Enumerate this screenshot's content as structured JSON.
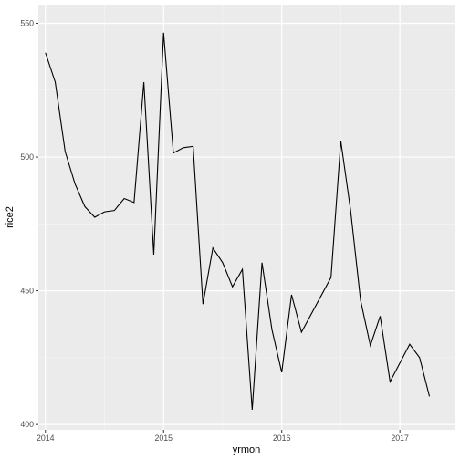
{
  "chart_data": {
    "type": "line",
    "xlabel": "yrmon",
    "ylabel": "rice2",
    "xlim": [
      2013.94,
      2017.47
    ],
    "ylim": [
      398,
      557
    ],
    "x_ticks": [
      2014,
      2015,
      2016,
      2017
    ],
    "y_ticks": [
      400,
      450,
      500,
      550
    ],
    "grid": true,
    "series": [
      {
        "x": [
          2014.0,
          2014.083,
          2014.167,
          2014.25,
          2014.333,
          2014.417,
          2014.5,
          2014.583,
          2014.667,
          2014.75,
          2014.833,
          2014.917,
          2015.0,
          2015.083,
          2015.167,
          2015.25,
          2015.333,
          2015.417,
          2015.5,
          2015.583,
          2015.667,
          2015.75,
          2015.833,
          2015.917,
          2016.0,
          2016.083,
          2016.167,
          2016.417,
          2016.5,
          2016.583,
          2016.667,
          2016.75,
          2016.833,
          2016.917,
          2017.083,
          2017.167,
          2017.25
        ],
        "values": [
          539,
          528,
          502,
          490,
          481.5,
          477.5,
          479.5,
          480,
          484.5,
          483,
          528,
          463.5,
          546.5,
          501.5,
          503.5,
          504,
          445,
          466,
          460.5,
          451.5,
          458,
          405.5,
          460.5,
          435.5,
          419.5,
          448.5,
          434.5,
          455,
          506,
          480,
          446.5,
          429.5,
          440.5,
          416,
          430,
          425,
          410.5
        ]
      }
    ]
  }
}
